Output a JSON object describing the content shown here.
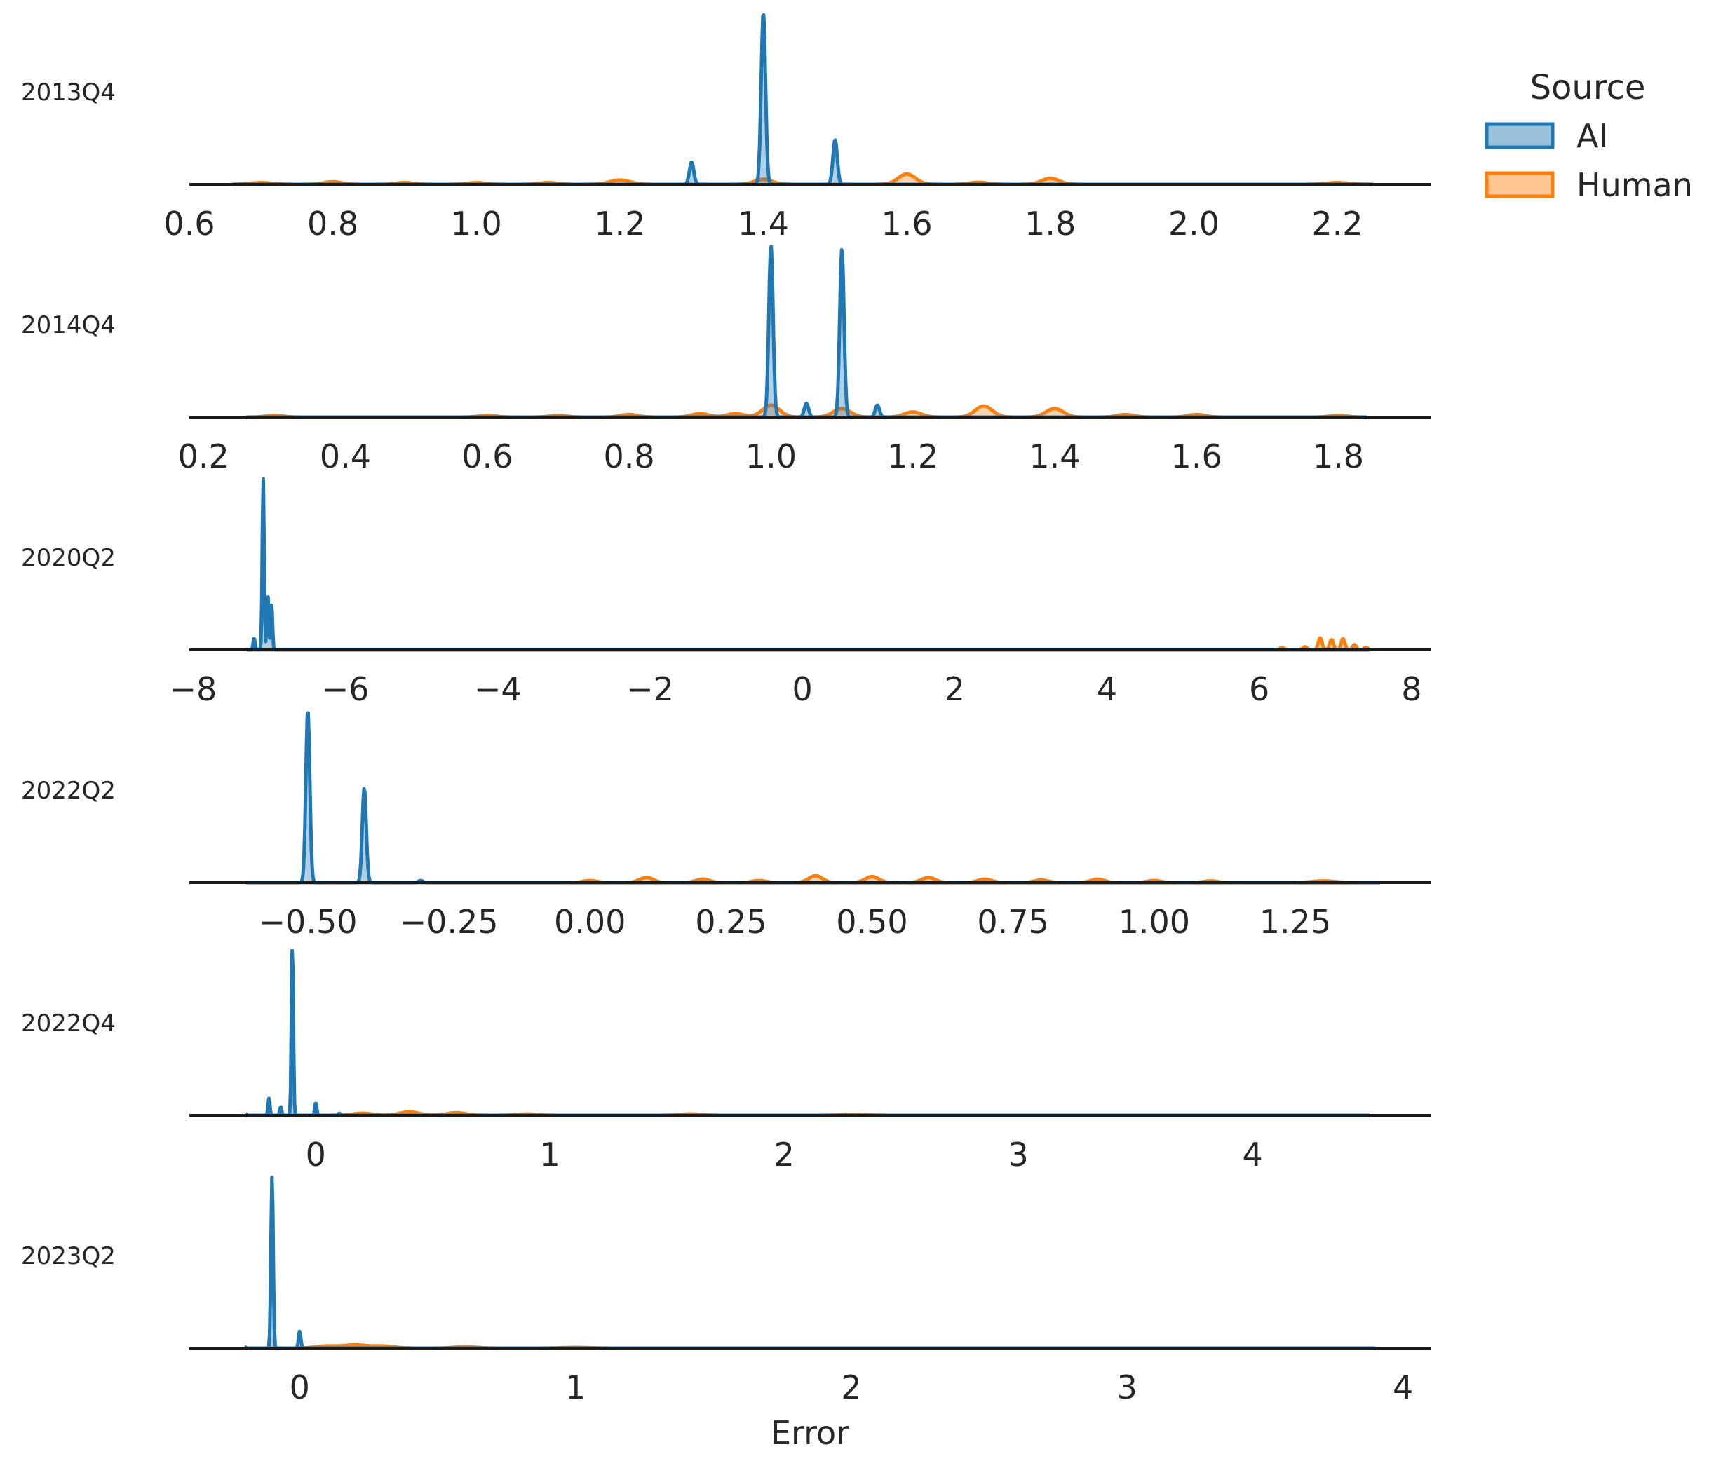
{
  "chart_data": {
    "type": "area",
    "title": "",
    "xlabel": "Error",
    "legend": {
      "title": "Source",
      "placement": "top-right",
      "entries": [
        {
          "name": "AI",
          "color": "#1f77b4"
        },
        {
          "name": "Human",
          "color": "#ff7f0e"
        }
      ]
    },
    "panels": [
      {
        "label": "2013Q4",
        "xlim": [
          0.6,
          2.33
        ],
        "data_range": [
          0.66,
          2.25
        ],
        "ticks": [
          0.6,
          0.8,
          1.0,
          1.2,
          1.4,
          1.6,
          1.8,
          2.0,
          2.2
        ],
        "tick_labels": [
          "0.6",
          "0.8",
          "1.0",
          "1.2",
          "1.4",
          "1.6",
          "1.8",
          "2.0",
          "2.2"
        ],
        "ai_peaks": [
          [
            1.3,
            0.13,
            0.003
          ],
          [
            1.4,
            1.0,
            0.003
          ],
          [
            1.5,
            0.26,
            0.003
          ]
        ],
        "human_peaks": [
          [
            0.7,
            0.01,
            0.015
          ],
          [
            0.8,
            0.015,
            0.012
          ],
          [
            0.9,
            0.01,
            0.012
          ],
          [
            1.0,
            0.01,
            0.012
          ],
          [
            1.1,
            0.01,
            0.012
          ],
          [
            1.2,
            0.025,
            0.014
          ],
          [
            1.4,
            0.03,
            0.012
          ],
          [
            1.6,
            0.06,
            0.012
          ],
          [
            1.7,
            0.012,
            0.012
          ],
          [
            1.8,
            0.035,
            0.012
          ],
          [
            2.2,
            0.01,
            0.015
          ]
        ]
      },
      {
        "label": "2014Q4",
        "xlim": [
          0.18,
          1.93
        ],
        "data_range": [
          0.26,
          1.84
        ],
        "ticks": [
          0.2,
          0.4,
          0.6,
          0.8,
          1.0,
          1.2,
          1.4,
          1.6,
          1.8
        ],
        "tick_labels": [
          "0.2",
          "0.4",
          "0.6",
          "0.8",
          "1.0",
          "1.2",
          "1.4",
          "1.6",
          "1.8"
        ],
        "ai_peaks": [
          [
            1.0,
            1.0,
            0.003
          ],
          [
            1.05,
            0.08,
            0.003
          ],
          [
            1.1,
            0.98,
            0.003
          ],
          [
            1.15,
            0.07,
            0.003
          ]
        ],
        "human_peaks": [
          [
            0.3,
            0.01,
            0.012
          ],
          [
            0.6,
            0.01,
            0.012
          ],
          [
            0.7,
            0.01,
            0.012
          ],
          [
            0.8,
            0.015,
            0.012
          ],
          [
            0.9,
            0.02,
            0.012
          ],
          [
            0.95,
            0.02,
            0.012
          ],
          [
            1.0,
            0.07,
            0.012
          ],
          [
            1.1,
            0.05,
            0.012
          ],
          [
            1.2,
            0.03,
            0.012
          ],
          [
            1.3,
            0.065,
            0.012
          ],
          [
            1.4,
            0.05,
            0.012
          ],
          [
            1.5,
            0.015,
            0.012
          ],
          [
            1.6,
            0.015,
            0.012
          ],
          [
            1.8,
            0.01,
            0.012
          ]
        ]
      },
      {
        "label": "2020Q2",
        "xlim": [
          -8.05,
          8.25
        ],
        "data_range": [
          -7.3,
          7.45
        ],
        "ticks": [
          -8,
          -6,
          -4,
          -2,
          0,
          2,
          4,
          6,
          8
        ],
        "tick_labels": [
          "−8",
          "−6",
          "−4",
          "−2",
          "0",
          "2",
          "4",
          "6",
          "8"
        ],
        "ai_peaks": [
          [
            -7.2,
            0.07,
            0.012
          ],
          [
            -7.08,
            1.0,
            0.012
          ],
          [
            -7.02,
            0.33,
            0.012
          ],
          [
            -6.97,
            0.27,
            0.012
          ]
        ],
        "human_peaks": [
          [
            6.3,
            0.012,
            0.03
          ],
          [
            6.6,
            0.018,
            0.03
          ],
          [
            6.8,
            0.07,
            0.025
          ],
          [
            6.95,
            0.06,
            0.025
          ],
          [
            7.1,
            0.065,
            0.025
          ],
          [
            7.25,
            0.03,
            0.025
          ],
          [
            7.4,
            0.015,
            0.025
          ]
        ]
      },
      {
        "label": "2022Q2",
        "xlim": [
          -0.71,
          1.49
        ],
        "data_range": [
          -0.61,
          1.4
        ],
        "ticks": [
          -0.5,
          -0.25,
          0.0,
          0.25,
          0.5,
          0.75,
          1.0,
          1.25
        ],
        "tick_labels": [
          "−0.50",
          "−0.25",
          "0.00",
          "0.25",
          "0.50",
          "0.75",
          "1.00",
          "1.25"
        ],
        "ai_peaks": [
          [
            -0.5,
            1.0,
            0.0035
          ],
          [
            -0.4,
            0.55,
            0.0035
          ],
          [
            -0.3,
            0.012,
            0.004
          ]
        ],
        "human_peaks": [
          [
            0.0,
            0.012,
            0.012
          ],
          [
            0.1,
            0.03,
            0.012
          ],
          [
            0.2,
            0.02,
            0.012
          ],
          [
            0.3,
            0.012,
            0.012
          ],
          [
            0.4,
            0.04,
            0.012
          ],
          [
            0.5,
            0.035,
            0.012
          ],
          [
            0.6,
            0.03,
            0.012
          ],
          [
            0.7,
            0.02,
            0.012
          ],
          [
            0.8,
            0.015,
            0.012
          ],
          [
            0.9,
            0.02,
            0.012
          ],
          [
            1.0,
            0.012,
            0.012
          ],
          [
            1.1,
            0.01,
            0.012
          ],
          [
            1.3,
            0.01,
            0.02
          ]
        ]
      },
      {
        "label": "2022Q4",
        "xlim": [
          -0.54,
          4.76
        ],
        "data_range": [
          -0.3,
          4.5
        ],
        "ticks": [
          0,
          1,
          2,
          3,
          4
        ],
        "tick_labels": [
          "0",
          "1",
          "2",
          "3",
          "4"
        ],
        "ai_peaks": [
          [
            -0.3,
            0.01,
            0.004
          ],
          [
            -0.2,
            0.1,
            0.004
          ],
          [
            -0.15,
            0.05,
            0.004
          ],
          [
            -0.1,
            1.0,
            0.004
          ],
          [
            0.0,
            0.075,
            0.004
          ],
          [
            0.1,
            0.012,
            0.004
          ]
        ],
        "human_peaks": [
          [
            0.2,
            0.012,
            0.04
          ],
          [
            0.4,
            0.02,
            0.04
          ],
          [
            0.6,
            0.015,
            0.04
          ],
          [
            0.9,
            0.008,
            0.04
          ],
          [
            1.6,
            0.008,
            0.04
          ],
          [
            2.3,
            0.005,
            0.05
          ]
        ]
      },
      {
        "label": "2023Q2",
        "xlim": [
          -0.4,
          4.1
        ],
        "data_range": [
          -0.2,
          3.9
        ],
        "ticks": [
          0,
          1,
          2,
          3,
          4
        ],
        "tick_labels": [
          "0",
          "1",
          "2",
          "3",
          "4"
        ],
        "ai_peaks": [
          [
            -0.2,
            0.008,
            0.004
          ],
          [
            -0.1,
            1.0,
            0.004
          ],
          [
            0.0,
            0.1,
            0.004
          ]
        ],
        "human_peaks": [
          [
            0.1,
            0.012,
            0.04
          ],
          [
            0.2,
            0.018,
            0.04
          ],
          [
            0.3,
            0.012,
            0.04
          ],
          [
            0.6,
            0.008,
            0.04
          ],
          [
            1.0,
            0.004,
            0.05
          ]
        ]
      }
    ]
  }
}
